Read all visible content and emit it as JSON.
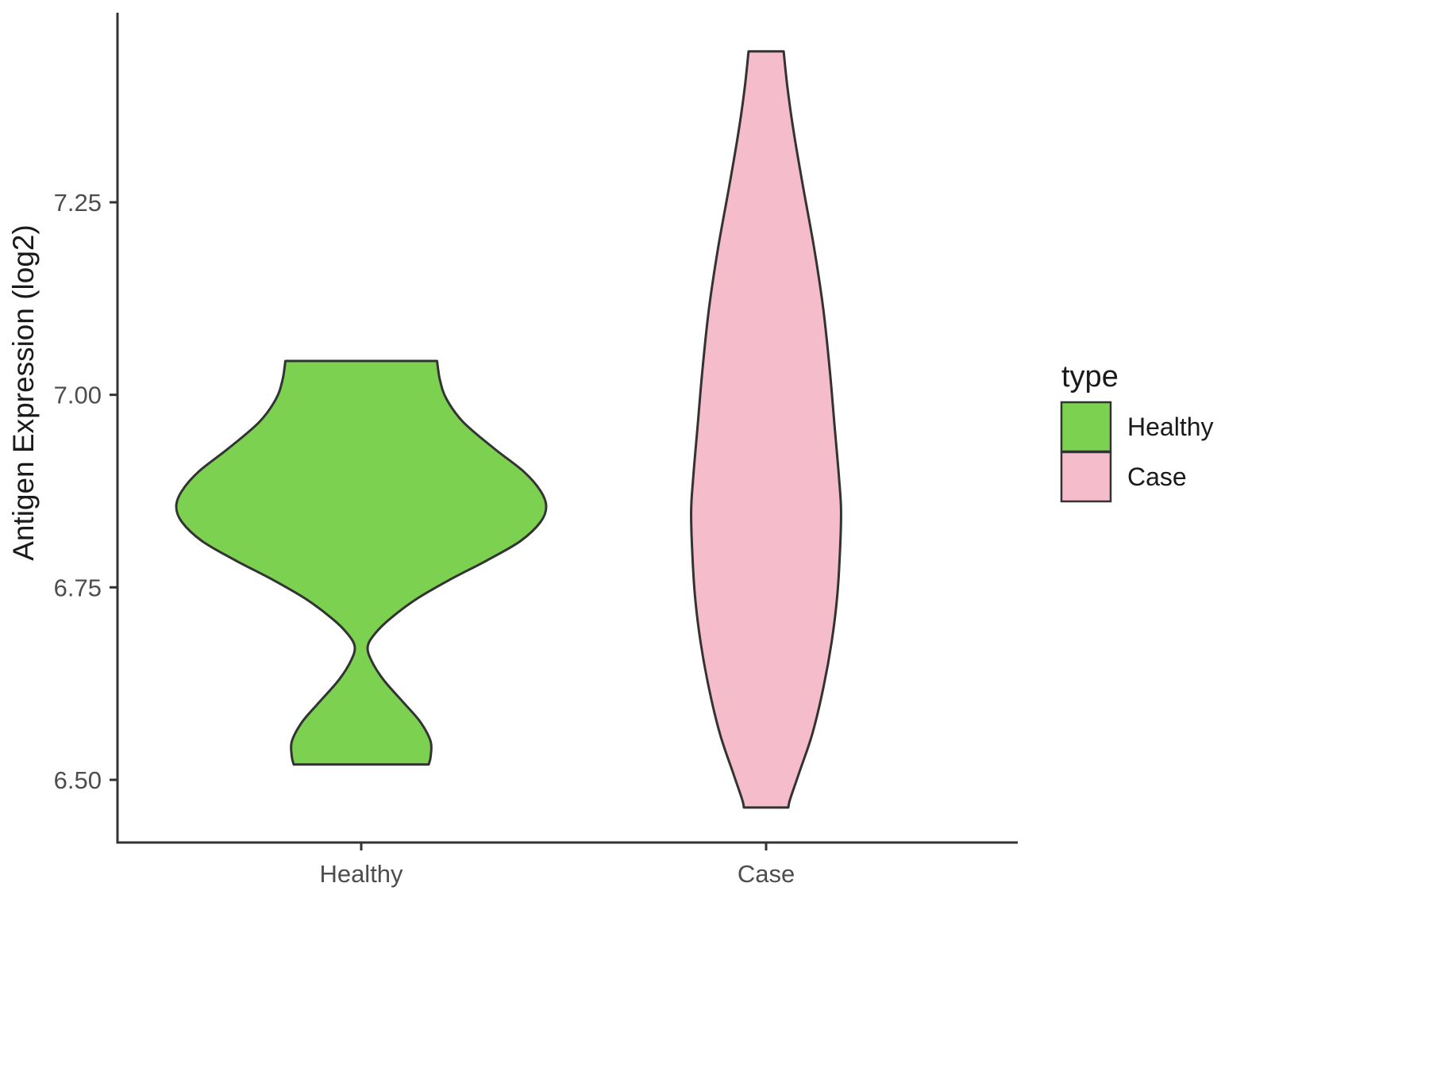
{
  "chart_data": {
    "type": "violin",
    "title": "",
    "xlabel": "",
    "ylabel": "Antigen Expression (log2)",
    "categories": [
      "Healthy",
      "Case"
    ],
    "y_ticks": [
      {
        "value": 6.5,
        "label": "6.50"
      },
      {
        "value": 6.75,
        "label": "6.75"
      },
      {
        "value": 7.0,
        "label": "7.00"
      },
      {
        "value": 7.25,
        "label": "7.25"
      }
    ],
    "ylim": [
      6.42,
      7.48
    ],
    "grid": false,
    "legend_position": "right",
    "legend": {
      "title": "type",
      "entries": [
        {
          "label": "Healthy",
          "color": "#7CD150"
        },
        {
          "label": "Case",
          "color": "#F5BCCB"
        }
      ]
    },
    "stroke_color": "#333333",
    "profile_format": "pairs of [y_value, half_width_fraction_of_widest_violin]",
    "violins": [
      {
        "category": "Healthy",
        "color": "#7CD150",
        "value_range": [
          6.52,
          7.044
        ],
        "peak_value": 6.86,
        "profile": [
          [
            7.044,
            0.41
          ],
          [
            7.02,
            0.425
          ],
          [
            6.995,
            0.46
          ],
          [
            6.965,
            0.55
          ],
          [
            6.93,
            0.72
          ],
          [
            6.9,
            0.88
          ],
          [
            6.875,
            0.97
          ],
          [
            6.855,
            1.0
          ],
          [
            6.835,
            0.97
          ],
          [
            6.81,
            0.86
          ],
          [
            6.785,
            0.68
          ],
          [
            6.76,
            0.48
          ],
          [
            6.735,
            0.3
          ],
          [
            6.71,
            0.16
          ],
          [
            6.69,
            0.075
          ],
          [
            6.673,
            0.035
          ],
          [
            6.655,
            0.055
          ],
          [
            6.63,
            0.12
          ],
          [
            6.6,
            0.23
          ],
          [
            6.575,
            0.32
          ],
          [
            6.55,
            0.375
          ],
          [
            6.53,
            0.375
          ],
          [
            6.52,
            0.365
          ]
        ]
      },
      {
        "category": "Case",
        "color": "#F5BCCB",
        "value_range": [
          6.464,
          7.446
        ],
        "peak_value": 6.85,
        "profile": [
          [
            7.446,
            0.095
          ],
          [
            7.4,
            0.115
          ],
          [
            7.34,
            0.15
          ],
          [
            7.27,
            0.2
          ],
          [
            7.19,
            0.26
          ],
          [
            7.11,
            0.31
          ],
          [
            7.03,
            0.345
          ],
          [
            6.96,
            0.37
          ],
          [
            6.89,
            0.395
          ],
          [
            6.85,
            0.405
          ],
          [
            6.8,
            0.4
          ],
          [
            6.74,
            0.385
          ],
          [
            6.68,
            0.355
          ],
          [
            6.62,
            0.31
          ],
          [
            6.56,
            0.25
          ],
          [
            6.51,
            0.18
          ],
          [
            6.475,
            0.13
          ],
          [
            6.464,
            0.12
          ]
        ]
      }
    ]
  }
}
